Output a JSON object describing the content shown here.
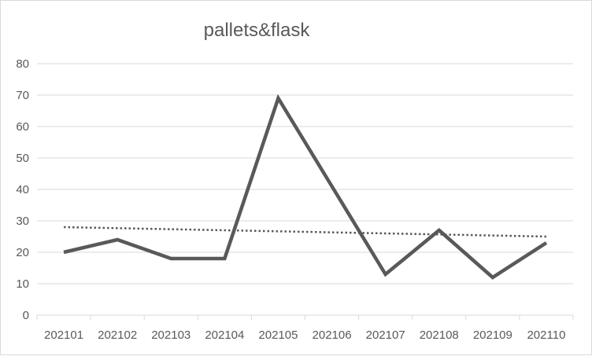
{
  "chart_data": {
    "type": "line",
    "title": "pallets&flask",
    "categories": [
      "202101",
      "202102",
      "202103",
      "202104",
      "202105",
      "202106",
      "202107",
      "202108",
      "202109",
      "202110"
    ],
    "series": [
      {
        "values": [
          20,
          24,
          18,
          18,
          69,
          41,
          13,
          27,
          12,
          23
        ],
        "color": "#595959"
      }
    ],
    "trendline": {
      "type": "linear",
      "style": "dotted",
      "color": "#595959"
    },
    "yticks": [
      0,
      10,
      20,
      30,
      40,
      50,
      60,
      70,
      80
    ],
    "ylim": [
      0,
      80
    ],
    "grid": true,
    "legend": "none"
  }
}
